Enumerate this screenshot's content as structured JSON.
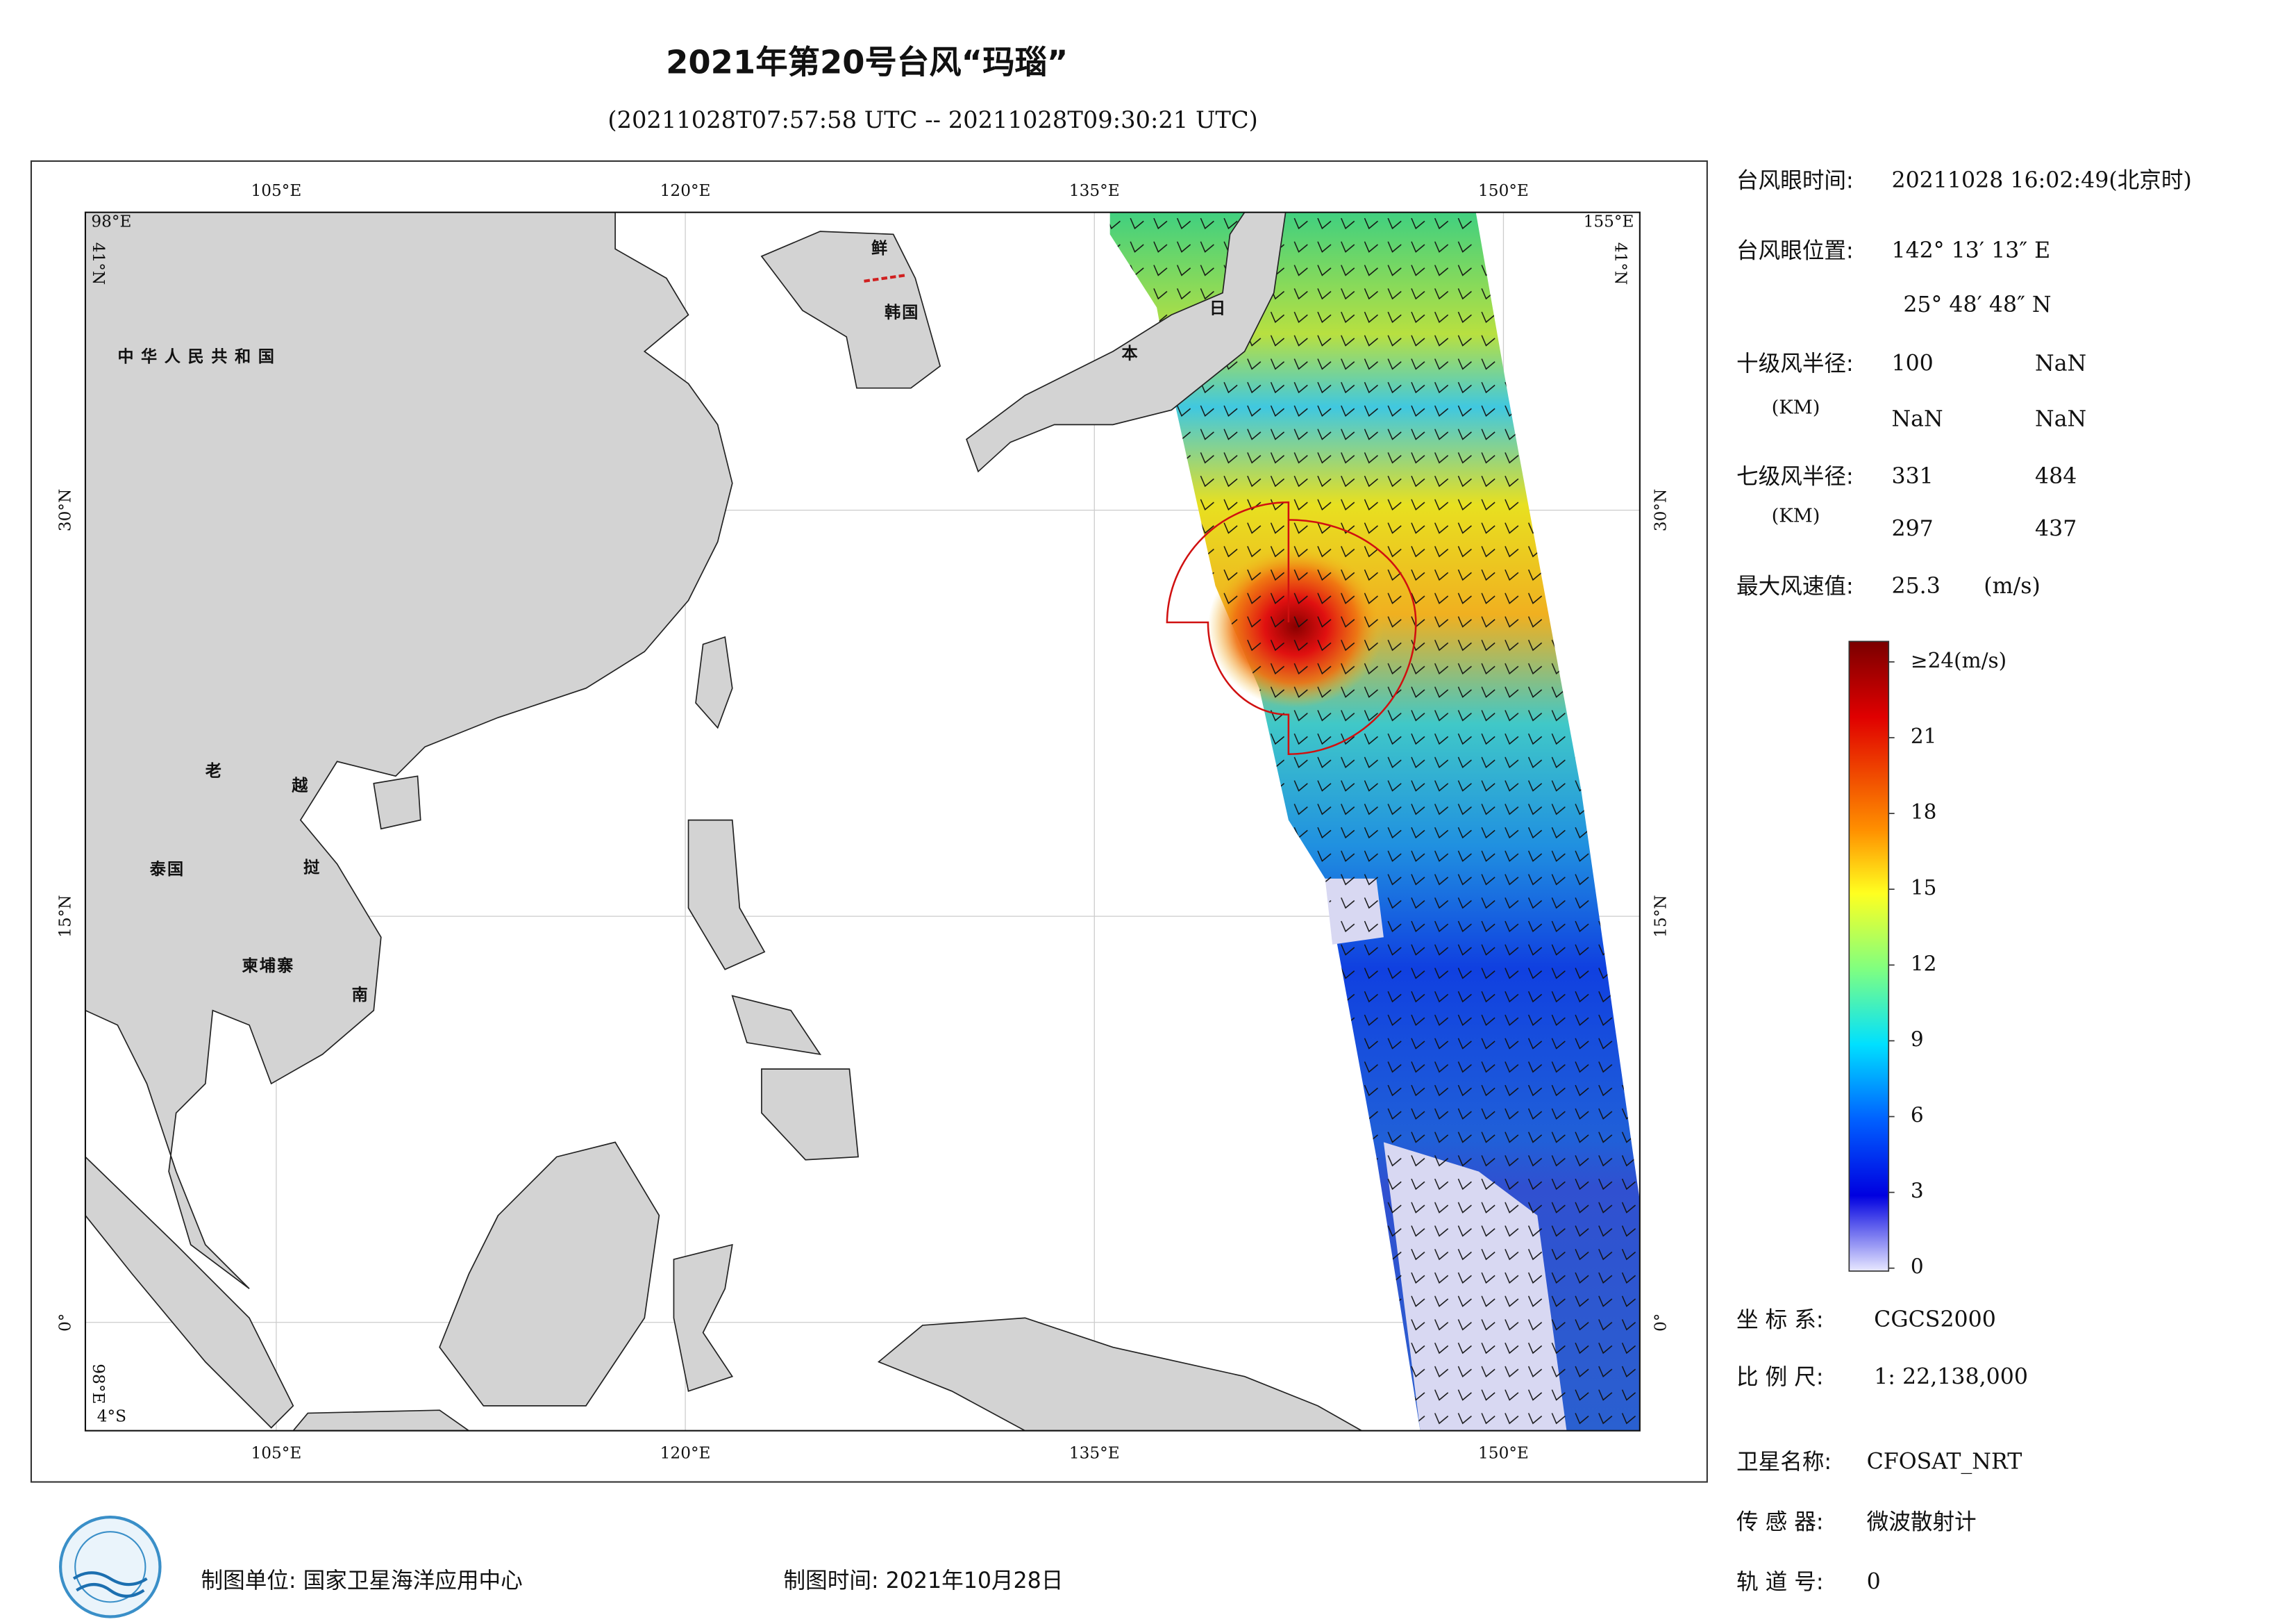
{
  "header": {
    "title": "2021年第20号台风“玛瑙”",
    "subtitle": "(20211028T07:57:58 UTC -- 20211028T09:30:21 UTC)"
  },
  "map": {
    "xlim": [
      {
        "value": 98,
        "label": "98°E"
      },
      {
        "value": 155,
        "label": "155°E"
      }
    ],
    "ylim": [
      {
        "value": -4,
        "label": "4°S"
      },
      {
        "value": 41,
        "label": "41°N"
      }
    ],
    "xticks": [
      {
        "value": 105,
        "label": "105°E"
      },
      {
        "value": 120,
        "label": "120°E"
      },
      {
        "value": 135,
        "label": "135°E"
      },
      {
        "value": 150,
        "label": "150°E"
      }
    ],
    "yticks": [
      {
        "value": 0,
        "label": "0°"
      },
      {
        "value": 15,
        "label": "15°N"
      },
      {
        "value": 30,
        "label": "30°N"
      }
    ],
    "labels": [
      "中华人民共和国",
      "鲜",
      "韩国",
      "日",
      "本",
      "老",
      "越",
      "泰国",
      "挝",
      "柬埔寨",
      "南"
    ]
  },
  "colorbar": {
    "lim": [
      0,
      24
    ],
    "ticks": [
      0,
      3,
      6,
      9,
      12,
      15,
      18,
      21,
      {
        "value": 24,
        "label": "≥24(m/s)"
      }
    ]
  },
  "info": {
    "eye_time": {
      "label": "台风眼时间:",
      "value": "20211028 16:02:49(北京时)"
    },
    "eye_position": {
      "label": "台风眼位置:",
      "lon": "142° 13′ 13″ E",
      "lat": "25° 48′ 48″ N"
    },
    "r10": {
      "label": "十级风半径:",
      "unit": "(KM)",
      "values": [
        100,
        "NaN",
        "NaN",
        "NaN"
      ]
    },
    "r7": {
      "label": "七级风半径:",
      "unit": "(KM)",
      "values": [
        331,
        484,
        297,
        437
      ]
    },
    "max_wind": {
      "label": "最大风速值:",
      "value": 25.3,
      "unit": "(m/s)"
    },
    "crs": {
      "label": "坐 标 系:",
      "value": "CGCS2000"
    },
    "scale": {
      "label": "比 例 尺:",
      "value": "1: 22,138,000"
    },
    "satellite": {
      "label": "卫星名称:",
      "value": "CFOSAT_NRT"
    },
    "sensor": {
      "label": "传 感 器:",
      "value": "微波散射计"
    },
    "orbit": {
      "label": "轨 道 号:",
      "value": 0
    }
  },
  "footer": {
    "unit": "制图单位: 国家卫星海洋应用中心",
    "time": "制图时间: 2021年10月28日"
  }
}
